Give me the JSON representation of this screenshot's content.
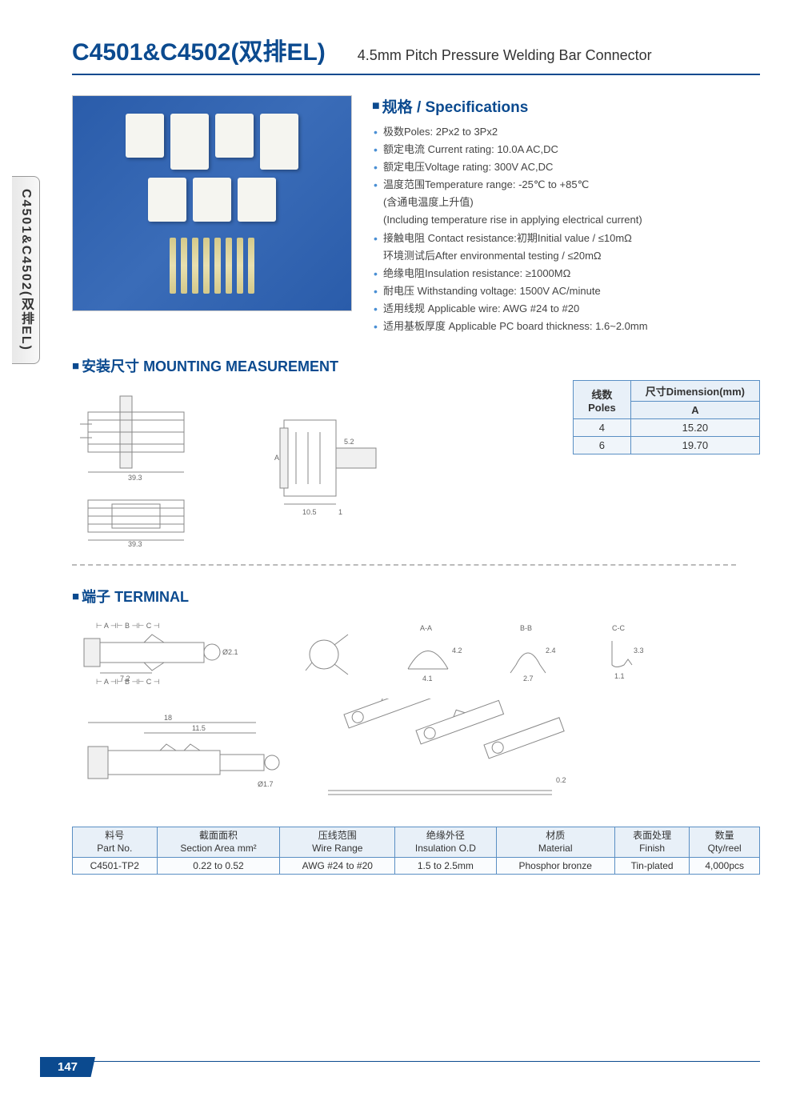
{
  "sideTab": "C4501&C4502(双排EL)",
  "header": {
    "title": "C4501&C4502(双排EL)",
    "subtitle": "4.5mm Pitch Pressure Welding Bar Connector"
  },
  "specs": {
    "heading": "规格 / Specifications",
    "items": [
      {
        "bullet": true,
        "text": "极数Poles: 2Px2 to 3Px2"
      },
      {
        "bullet": true,
        "text": "额定电流 Current rating: 10.0A AC,DC"
      },
      {
        "bullet": true,
        "text": "额定电压Voltage rating: 300V AC,DC"
      },
      {
        "bullet": true,
        "text": "温度范围Temperature range: -25℃ to +85℃"
      },
      {
        "bullet": false,
        "text": "(含通电温度上升值)"
      },
      {
        "bullet": false,
        "text": "(Including temperature rise in applying electrical current)"
      },
      {
        "bullet": true,
        "text": "接触电阻 Contact resistance:初期Initial value / ≤10mΩ"
      },
      {
        "bullet": false,
        "text": "环境测试后After environmental testing / ≤20mΩ"
      },
      {
        "bullet": true,
        "text": "绝缘电阻Insulation resistance: ≥1000MΩ"
      },
      {
        "bullet": true,
        "text": "耐电压 Withstanding voltage: 1500V AC/minute"
      },
      {
        "bullet": true,
        "text": "适用线规 Applicable wire: AWG #24 to #20"
      },
      {
        "bullet": true,
        "text": "适用基板厚度 Applicable PC board thickness: 1.6~2.0mm"
      }
    ]
  },
  "mounting": {
    "heading": "安装尺寸 MOUNTING MEASUREMENT",
    "dims": {
      "d1": "39.3",
      "d2": "39.3",
      "d3": "10.5",
      "d4": "1",
      "d5": "5.2",
      "dA": "A"
    },
    "table": {
      "hdr1a": "线数",
      "hdr1b": "Poles",
      "hdr2a": "尺寸Dimension(mm)",
      "hdr2b": "A",
      "rows": [
        {
          "poles": "4",
          "a": "15.20"
        },
        {
          "poles": "6",
          "a": "19.70"
        }
      ]
    }
  },
  "terminal": {
    "heading": "端子 TERMINAL",
    "labels": {
      "abc": "A    B    C",
      "aa": "A-A",
      "bb": "B-B",
      "cc": "C-C"
    },
    "dims": {
      "t1": "7.2",
      "t2": "Ø2.1",
      "t3": "18",
      "t4": "11.5",
      "t5": "Ø1.7",
      "aa_w": "4.1",
      "aa_h": "4.2",
      "bb_w": "2.7",
      "bb_h": "2.4",
      "cc_w": "1.1",
      "cc_h": "3.3",
      "strip": "0.2"
    }
  },
  "bottomTable": {
    "headers": [
      {
        "cn": "料号",
        "en": "Part No."
      },
      {
        "cn": "截面面积",
        "en": "Section Area mm²"
      },
      {
        "cn": "压线范围",
        "en": "Wire Range"
      },
      {
        "cn": "绝缘外径",
        "en": "Insulation O.D"
      },
      {
        "cn": "材质",
        "en": "Material"
      },
      {
        "cn": "表面处理",
        "en": "Finish"
      },
      {
        "cn": "数量",
        "en": "Qty/reel"
      }
    ],
    "row": [
      "C4501-TP2",
      "0.22 to 0.52",
      "AWG #24 to #20",
      "1.5 to 2.5mm",
      "Phosphor bronze",
      "Tin-plated",
      "4,000pcs"
    ]
  },
  "pageNum": "147"
}
